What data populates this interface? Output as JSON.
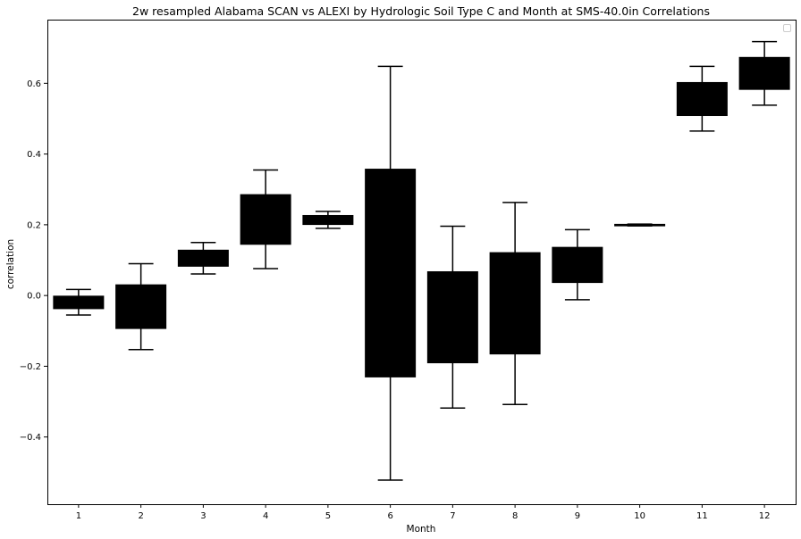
{
  "chart_data": {
    "type": "box",
    "title": "2w resampled Alabama SCAN vs ALEXI by Hydrologic Soil Type C and Month at SMS-40.0in Correlations",
    "xlabel": "Month",
    "ylabel": "correlation",
    "categories": [
      "1",
      "2",
      "3",
      "4",
      "5",
      "6",
      "7",
      "8",
      "9",
      "10",
      "11",
      "12"
    ],
    "boxes": [
      {
        "whisker_low": -0.055,
        "q1": -0.037,
        "median": -0.02,
        "q3": -0.002,
        "whisker_high": 0.017
      },
      {
        "whisker_low": -0.153,
        "q1": -0.093,
        "median": -0.03,
        "q3": 0.03,
        "whisker_high": 0.09
      },
      {
        "whisker_low": 0.061,
        "q1": 0.083,
        "median": 0.105,
        "q3": 0.128,
        "whisker_high": 0.15
      },
      {
        "whisker_low": 0.076,
        "q1": 0.145,
        "median": 0.215,
        "q3": 0.285,
        "whisker_high": 0.355
      },
      {
        "whisker_low": 0.19,
        "q1": 0.201,
        "median": 0.213,
        "q3": 0.226,
        "whisker_high": 0.238
      },
      {
        "whisker_low": -0.522,
        "q1": -0.23,
        "median": 0.063,
        "q3": 0.357,
        "whisker_high": 0.648
      },
      {
        "whisker_low": -0.318,
        "q1": -0.19,
        "median": -0.062,
        "q3": 0.067,
        "whisker_high": 0.196
      },
      {
        "whisker_low": -0.308,
        "q1": -0.165,
        "median": -0.022,
        "q3": 0.121,
        "whisker_high": 0.263
      },
      {
        "whisker_low": -0.012,
        "q1": 0.037,
        "median": 0.087,
        "q3": 0.136,
        "whisker_high": 0.186
      },
      {
        "whisker_low": 0.197,
        "q1": 0.198,
        "median": 0.2,
        "q3": 0.201,
        "whisker_high": 0.202
      },
      {
        "whisker_low": 0.465,
        "q1": 0.509,
        "median": 0.556,
        "q3": 0.602,
        "whisker_high": 0.648
      },
      {
        "whisker_low": 0.538,
        "q1": 0.583,
        "median": 0.628,
        "q3": 0.673,
        "whisker_high": 0.718
      }
    ],
    "ylim": [
      -0.59,
      0.78
    ],
    "yticks": [
      -0.4,
      -0.2,
      0.0,
      0.2,
      0.4,
      0.6
    ],
    "ytick_labels": [
      "−0.4",
      "−0.2",
      "0.0",
      "0.2",
      "0.4",
      "0.6"
    ],
    "box_color": "#000000",
    "grid": false,
    "legend": "top-right, empty"
  }
}
